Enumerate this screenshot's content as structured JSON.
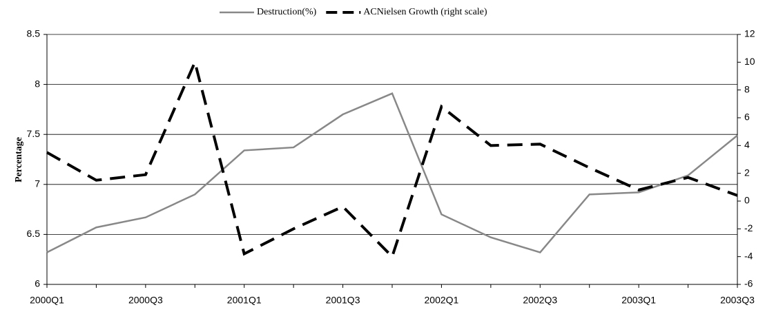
{
  "chart_data": {
    "type": "line",
    "categories": [
      "2000Q1",
      null,
      "2000Q3",
      null,
      "2001Q1",
      null,
      "2001Q3",
      null,
      "2002Q1",
      null,
      "2002Q3",
      null,
      "2003Q1",
      null,
      "2003Q3"
    ],
    "ylabel": "Percentage",
    "series": [
      {
        "name": "Destruction(%)",
        "color": "#888888",
        "values": [
          6.32,
          6.57,
          6.67,
          6.9,
          7.34,
          7.37,
          7.7,
          7.91,
          6.7,
          6.47,
          6.32,
          6.9,
          6.92,
          7.09,
          7.49
        ]
      },
      {
        "name": "ACNielsen Growth (right scale)",
        "color": "#000000",
        "axis": "y2",
        "dashed": true,
        "values": [
          3.5,
          1.5,
          1.9,
          10,
          -3.8,
          -2,
          -0.4,
          -4,
          6.8,
          4,
          4.1,
          2.4,
          0.8,
          1.7,
          0.4
        ]
      }
    ],
    "ylim": [
      6,
      8.5
    ],
    "yticks": [
      6,
      6.5,
      7,
      7.5,
      8,
      8.5
    ],
    "y2lim": [
      -6,
      12
    ],
    "y2ticks": [
      -6,
      -4,
      -2,
      0,
      2,
      4,
      6,
      8,
      10,
      12
    ],
    "grid": true,
    "legend": "top"
  }
}
